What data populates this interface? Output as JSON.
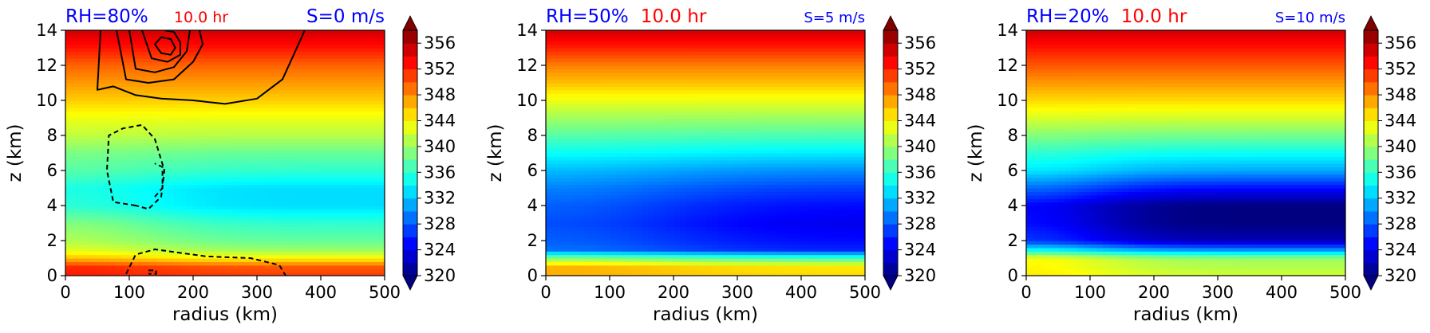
{
  "chart_data": [
    {
      "type": "heatmap",
      "title_left": "RH=80%",
      "title_center": "10.0 hr",
      "title_right": "S=0 m/s",
      "xlabel": "radius (km)",
      "ylabel": "z (km)",
      "xlim": [
        0,
        500
      ],
      "ylim": [
        0,
        14
      ],
      "xticks": [
        0,
        100,
        200,
        300,
        400,
        500
      ],
      "yticks": [
        0,
        2,
        4,
        6,
        8,
        10,
        12,
        14
      ],
      "profile_z": [
        0,
        0.5,
        1,
        1.5,
        2,
        3,
        4,
        5,
        6,
        7,
        8,
        9,
        10,
        11,
        12,
        13,
        14
      ],
      "profile_theta": [
        351,
        350,
        344,
        340,
        338,
        336,
        333,
        333,
        336,
        338,
        341,
        343,
        345.5,
        347.5,
        349.5,
        352.5,
        355
      ],
      "inner_core_extent_km": 170,
      "inner_core_anomaly": 3,
      "contours_solid": [
        {
          "r": [
            55,
            50,
            75,
            110,
            150,
            200,
            250,
            300,
            340,
            375
          ],
          "z": [
            14,
            10.6,
            10.8,
            10.3,
            10.1,
            10.0,
            9.8,
            10.1,
            11.2,
            14
          ]
        },
        {
          "r": [
            80,
            95,
            130,
            170,
            200,
            215,
            210
          ],
          "z": [
            14,
            11.2,
            11.0,
            11.2,
            12.2,
            13.2,
            14
          ]
        },
        {
          "r": [
            100,
            110,
            140,
            170,
            190,
            195
          ],
          "z": [
            14,
            11.8,
            11.6,
            11.9,
            12.8,
            14
          ]
        },
        {
          "r": [
            120,
            135,
            160,
            180,
            180,
            170,
            155
          ],
          "z": [
            14,
            12.4,
            12.2,
            12.6,
            13.3,
            13.9,
            14
          ]
        },
        {
          "r": [
            140,
            150,
            165,
            172,
            165,
            150,
            140
          ],
          "z": [
            13.2,
            12.7,
            12.6,
            13.0,
            13.5,
            13.6,
            13.2
          ]
        }
      ],
      "contours_dashed": [
        {
          "r": [
            110,
            75,
            65,
            68,
            90,
            120,
            140,
            155,
            150,
            130,
            110
          ],
          "z": [
            4.0,
            4.2,
            6.0,
            8.0,
            8.4,
            8.6,
            7.8,
            6.0,
            4.5,
            3.8,
            4.0
          ]
        },
        {
          "r": [
            140,
            152,
            152,
            140
          ],
          "z": [
            4.5,
            5.0,
            6.2,
            6.4
          ]
        },
        {
          "r": [
            95,
            110,
            140,
            220,
            290,
            335,
            345
          ],
          "z": [
            0.1,
            1.2,
            1.5,
            1.1,
            1.0,
            0.6,
            0.0
          ]
        },
        {
          "r": [
            130,
            142,
            142,
            130
          ],
          "z": [
            0.3,
            0.3,
            0.1,
            0.1
          ]
        }
      ],
      "colorbar": {
        "min": 320,
        "max": 358,
        "ticks": [
          320,
          324,
          328,
          332,
          336,
          340,
          344,
          348,
          352,
          356
        ],
        "extend": "both"
      }
    },
    {
      "type": "heatmap",
      "title_left": "RH=50%",
      "title_center": "10.0 hr",
      "title_right": "S=5 m/s",
      "xlabel": "radius (km)",
      "ylabel": "z (km)",
      "xlim": [
        0,
        500
      ],
      "ylim": [
        0,
        14
      ],
      "xticks": [
        0,
        100,
        200,
        300,
        400,
        500
      ],
      "yticks": [
        0,
        2,
        4,
        6,
        8,
        10,
        12,
        14
      ],
      "profile_z": [
        0,
        0.5,
        1,
        1.5,
        2,
        3,
        4,
        5,
        6,
        7,
        8,
        9,
        10,
        11,
        12,
        13,
        14
      ],
      "profile_theta": [
        345,
        344.5,
        337,
        326,
        325,
        324,
        325,
        327,
        330,
        333.5,
        337,
        340,
        343,
        346,
        348.5,
        352,
        355
      ],
      "inner_core_extent_km": 250,
      "inner_core_anomaly": 3.5,
      "contours_solid": [],
      "contours_dashed": [],
      "colorbar": {
        "min": 320,
        "max": 358,
        "ticks": [
          320,
          324,
          328,
          332,
          336,
          340,
          344,
          348,
          352,
          356
        ],
        "extend": "both"
      }
    },
    {
      "type": "heatmap",
      "title_left": "RH=20%",
      "title_center": "10.0 hr",
      "title_right": "S=10 m/s",
      "xlabel": "radius (km)",
      "ylabel": "z (km)",
      "xlim": [
        0,
        500
      ],
      "ylim": [
        0,
        14
      ],
      "xticks": [
        0,
        100,
        200,
        300,
        400,
        500
      ],
      "yticks": [
        0,
        2,
        4,
        6,
        8,
        10,
        12,
        14
      ],
      "profile_z": [
        0,
        0.5,
        1,
        1.5,
        2,
        3,
        4,
        5,
        6,
        7,
        8,
        9,
        10,
        11,
        12,
        13,
        14
      ],
      "profile_theta": [
        342,
        341,
        340,
        330,
        322,
        320,
        320,
        325,
        331,
        334.5,
        338.5,
        342,
        345,
        347.5,
        350,
        352.5,
        355
      ],
      "inner_core_extent_km": 150,
      "inner_core_anomaly": 5,
      "contours_solid": [],
      "contours_dashed": [],
      "colorbar": {
        "min": 320,
        "max": 358,
        "ticks": [
          320,
          324,
          328,
          332,
          336,
          340,
          344,
          348,
          352,
          356
        ],
        "extend": "both"
      }
    }
  ],
  "colors": {
    "title_left": "#0000ff",
    "title_center": "#ff0000",
    "title_right": "#0000ff",
    "contour": "#000000",
    "colormap": "jet"
  }
}
